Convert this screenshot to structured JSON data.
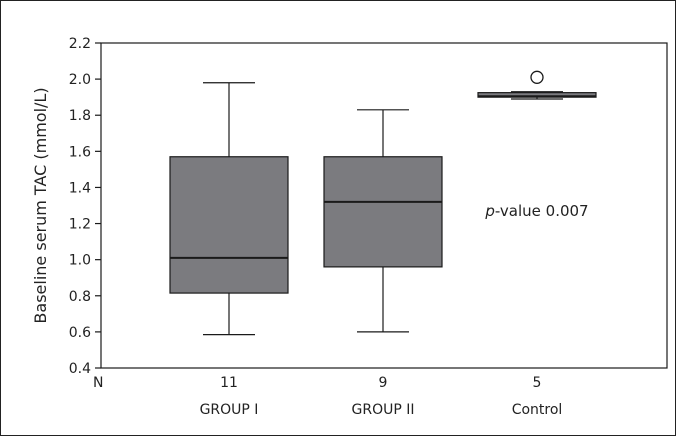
{
  "chart_data": {
    "type": "box",
    "ylabel": "Baseline serum TAC (mmol/L)",
    "ylim": [
      0.4,
      2.2
    ],
    "yticks": [
      "0.4",
      "0.6",
      "0.8",
      "1.0",
      "1.2",
      "1.4",
      "1.6",
      "1.8",
      "2.0",
      "2.2"
    ],
    "n_label": "N",
    "groups": [
      {
        "name": "GROUP I",
        "n": "11",
        "whisker_low": 0.585,
        "q1": 0.815,
        "median": 1.01,
        "q3": 1.57,
        "whisker_high": 1.98,
        "outliers": []
      },
      {
        "name": "GROUP II",
        "n": "9",
        "whisker_low": 0.6,
        "q1": 0.96,
        "median": 1.32,
        "q3": 1.57,
        "whisker_high": 1.83,
        "outliers": []
      },
      {
        "name": "Control",
        "n": "5",
        "whisker_low": 1.89,
        "q1": 1.9,
        "median": 1.905,
        "q3": 1.925,
        "whisker_high": 1.93,
        "outliers": [
          2.01
        ]
      }
    ],
    "annotation": {
      "italic": "p",
      "text": "-value 0.007"
    },
    "colors": {
      "box_fill": "#7b7b7f",
      "line": "#1a1a1a"
    }
  }
}
